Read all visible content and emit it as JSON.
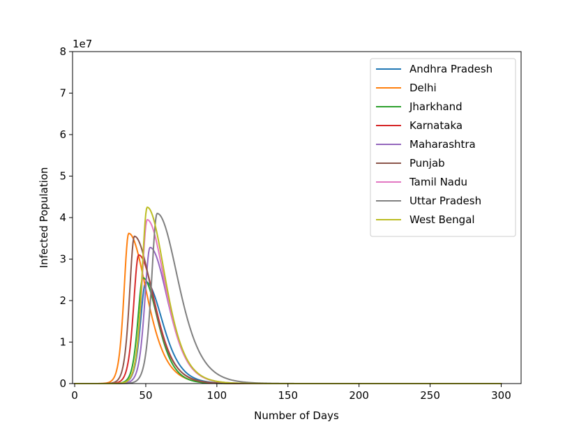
{
  "chart_data": {
    "type": "line",
    "title": "",
    "xlabel": "Number of Days",
    "ylabel": "Infected Population",
    "y_offset_label": "1e7",
    "xlim": [
      0,
      314
    ],
    "ylim": [
      0,
      8
    ],
    "x_ticks": [
      0,
      50,
      100,
      150,
      200,
      250,
      300
    ],
    "y_ticks": [
      0,
      1,
      2,
      3,
      4,
      5,
      6,
      7,
      8
    ],
    "x_tick_labels": [
      "0",
      "50",
      "100",
      "150",
      "200",
      "250",
      "300"
    ],
    "y_tick_labels": [
      "0",
      "1",
      "2",
      "3",
      "4",
      "5",
      "6",
      "7",
      "8"
    ],
    "grid": false,
    "legend_position": "top-right",
    "x_range": [
      0,
      300
    ],
    "series": [
      {
        "name": "Andhra Pradesh",
        "color": "#1f77b4",
        "peak_day": 50,
        "peak": 2.45,
        "rise": 5.0,
        "fall": 16
      },
      {
        "name": "Delhi",
        "color": "#ff7f0e",
        "peak_day": 38,
        "peak": 3.62,
        "rise": 4.5,
        "fall": 17
      },
      {
        "name": "Jharkhand",
        "color": "#2ca02c",
        "peak_day": 48,
        "peak": 2.55,
        "rise": 4.8,
        "fall": 14
      },
      {
        "name": "Karnataka",
        "color": "#d62728",
        "peak_day": 45,
        "peak": 3.1,
        "rise": 4.8,
        "fall": 16
      },
      {
        "name": "Maharashtra",
        "color": "#9467bd",
        "peak_day": 53,
        "peak": 3.28,
        "rise": 5.0,
        "fall": 17
      },
      {
        "name": "Punjab",
        "color": "#8c564b",
        "peak_day": 42,
        "peak": 3.55,
        "rise": 4.6,
        "fall": 17
      },
      {
        "name": "Tamil Nadu",
        "color": "#e377c2",
        "peak_day": 51,
        "peak": 3.95,
        "rise": 5.0,
        "fall": 17
      },
      {
        "name": "Uttar Pradesh",
        "color": "#7f7f7f",
        "peak_day": 58,
        "peak": 4.1,
        "rise": 5.3,
        "fall": 20
      },
      {
        "name": "West Bengal",
        "color": "#bcbd22",
        "peak_day": 51,
        "peak": 4.25,
        "rise": 5.0,
        "fall": 17
      }
    ]
  }
}
